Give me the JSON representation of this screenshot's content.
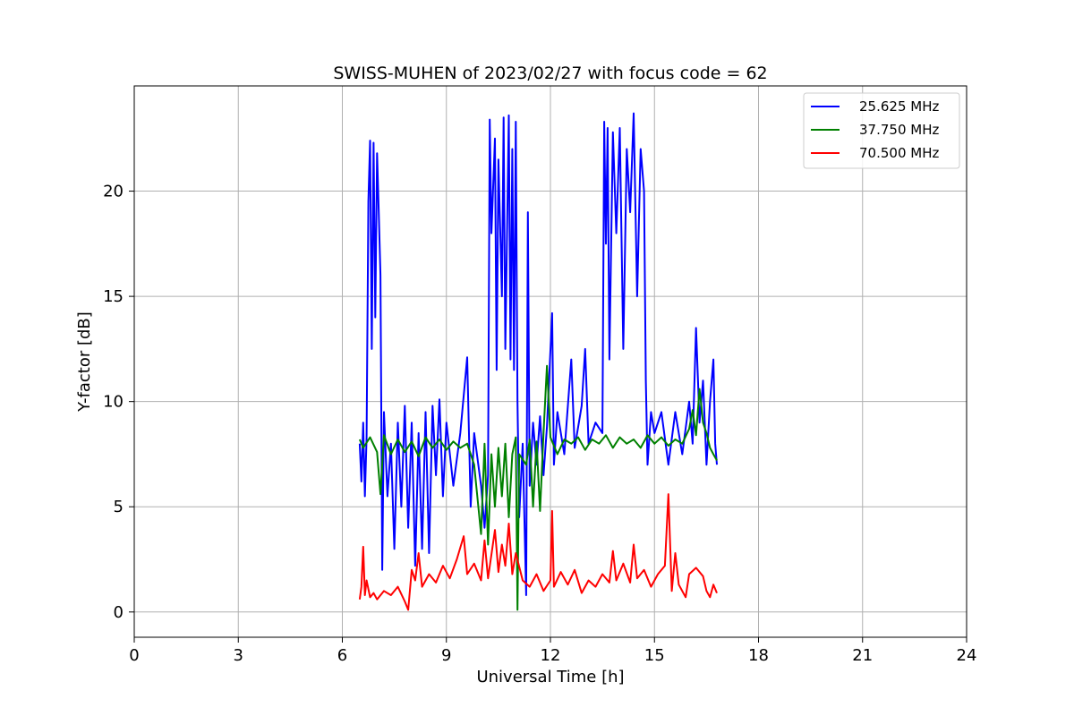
{
  "chart_data": {
    "type": "line",
    "title": "SWISS-MUHEN of 2023/02/27 with focus code = 62",
    "xlabel": "Universal Time [h]",
    "ylabel": "Y-factor [dB]",
    "xlim": [
      0,
      24
    ],
    "ylim": [
      -1.2,
      25
    ],
    "x_ticks": [
      0,
      3,
      6,
      9,
      12,
      15,
      18,
      21,
      24
    ],
    "y_ticks": [
      0,
      5,
      10,
      15,
      20
    ],
    "grid": true,
    "legend_position": "top-right",
    "series": [
      {
        "name": "25.625 MHz",
        "color": "#0000ff",
        "points": [
          [
            6.5,
            8.0
          ],
          [
            6.55,
            6.2
          ],
          [
            6.6,
            9.0
          ],
          [
            6.65,
            5.5
          ],
          [
            6.7,
            8.3
          ],
          [
            6.75,
            19.5
          ],
          [
            6.8,
            22.4
          ],
          [
            6.85,
            12.5
          ],
          [
            6.9,
            22.3
          ],
          [
            6.95,
            14.0
          ],
          [
            7.0,
            21.8
          ],
          [
            7.05,
            19.0
          ],
          [
            7.1,
            16.0
          ],
          [
            7.15,
            2.0
          ],
          [
            7.2,
            9.5
          ],
          [
            7.3,
            5.5
          ],
          [
            7.4,
            8.0
          ],
          [
            7.5,
            3.0
          ],
          [
            7.6,
            9.0
          ],
          [
            7.7,
            5.0
          ],
          [
            7.8,
            9.8
          ],
          [
            7.9,
            4.0
          ],
          [
            8.0,
            9.0
          ],
          [
            8.1,
            2.2
          ],
          [
            8.2,
            8.5
          ],
          [
            8.3,
            3.0
          ],
          [
            8.4,
            9.5
          ],
          [
            8.5,
            2.8
          ],
          [
            8.6,
            9.8
          ],
          [
            8.7,
            6.5
          ],
          [
            8.8,
            10.1
          ],
          [
            8.9,
            5.5
          ],
          [
            9.0,
            9.0
          ],
          [
            9.2,
            6.0
          ],
          [
            9.4,
            8.5
          ],
          [
            9.6,
            12.1
          ],
          [
            9.7,
            5.0
          ],
          [
            9.8,
            8.5
          ],
          [
            10.0,
            6.0
          ],
          [
            10.1,
            4.0
          ],
          [
            10.2,
            6.5
          ],
          [
            10.25,
            23.4
          ],
          [
            10.3,
            18.0
          ],
          [
            10.4,
            22.5
          ],
          [
            10.45,
            11.5
          ],
          [
            10.5,
            21.5
          ],
          [
            10.6,
            15.0
          ],
          [
            10.65,
            23.5
          ],
          [
            10.7,
            12.5
          ],
          [
            10.8,
            23.6
          ],
          [
            10.85,
            12.0
          ],
          [
            10.9,
            22.0
          ],
          [
            10.95,
            11.5
          ],
          [
            11.0,
            23.3
          ],
          [
            11.05,
            10.0
          ],
          [
            11.1,
            4.5
          ],
          [
            11.2,
            8.0
          ],
          [
            11.3,
            0.8
          ],
          [
            11.35,
            19.0
          ],
          [
            11.4,
            6.0
          ],
          [
            11.5,
            9.0
          ],
          [
            11.6,
            7.0
          ],
          [
            11.7,
            9.3
          ],
          [
            11.8,
            6.5
          ],
          [
            11.9,
            8.8
          ],
          [
            12.05,
            14.2
          ],
          [
            12.1,
            7.0
          ],
          [
            12.2,
            9.5
          ],
          [
            12.4,
            7.5
          ],
          [
            12.6,
            12.0
          ],
          [
            12.7,
            7.8
          ],
          [
            12.9,
            9.8
          ],
          [
            13.0,
            12.5
          ],
          [
            13.1,
            8.0
          ],
          [
            13.3,
            9.0
          ],
          [
            13.5,
            8.5
          ],
          [
            13.55,
            23.3
          ],
          [
            13.6,
            17.5
          ],
          [
            13.65,
            23.0
          ],
          [
            13.7,
            12.0
          ],
          [
            13.8,
            22.8
          ],
          [
            13.9,
            18.0
          ],
          [
            14.0,
            23.0
          ],
          [
            14.1,
            12.5
          ],
          [
            14.2,
            22.0
          ],
          [
            14.3,
            19.0
          ],
          [
            14.4,
            23.7
          ],
          [
            14.5,
            15.0
          ],
          [
            14.6,
            22.0
          ],
          [
            14.7,
            20.0
          ],
          [
            14.75,
            11.0
          ],
          [
            14.8,
            7.0
          ],
          [
            14.9,
            9.5
          ],
          [
            15.0,
            8.5
          ],
          [
            15.2,
            9.5
          ],
          [
            15.4,
            7.0
          ],
          [
            15.6,
            9.5
          ],
          [
            15.8,
            7.5
          ],
          [
            16.0,
            10.0
          ],
          [
            16.1,
            8.0
          ],
          [
            16.2,
            13.5
          ],
          [
            16.3,
            9.0
          ],
          [
            16.4,
            11.0
          ],
          [
            16.5,
            7.0
          ],
          [
            16.6,
            10.0
          ],
          [
            16.7,
            12.0
          ],
          [
            16.75,
            8.0
          ],
          [
            16.8,
            7.0
          ]
        ]
      },
      {
        "name": "37.750 MHz",
        "color": "#008000",
        "points": [
          [
            6.5,
            8.2
          ],
          [
            6.6,
            7.8
          ],
          [
            6.8,
            8.3
          ],
          [
            7.0,
            7.6
          ],
          [
            7.1,
            5.6
          ],
          [
            7.2,
            8.4
          ],
          [
            7.4,
            7.5
          ],
          [
            7.6,
            8.2
          ],
          [
            7.8,
            7.6
          ],
          [
            8.0,
            8.1
          ],
          [
            8.2,
            7.4
          ],
          [
            8.4,
            8.3
          ],
          [
            8.6,
            7.8
          ],
          [
            8.8,
            8.2
          ],
          [
            9.0,
            7.7
          ],
          [
            9.2,
            8.1
          ],
          [
            9.4,
            7.8
          ],
          [
            9.6,
            8.0
          ],
          [
            9.8,
            7.0
          ],
          [
            10.0,
            3.7
          ],
          [
            10.1,
            8.0
          ],
          [
            10.2,
            3.2
          ],
          [
            10.3,
            7.5
          ],
          [
            10.4,
            5.0
          ],
          [
            10.5,
            7.8
          ],
          [
            10.6,
            5.5
          ],
          [
            10.7,
            8.0
          ],
          [
            10.8,
            4.5
          ],
          [
            10.9,
            7.5
          ],
          [
            11.0,
            8.3
          ],
          [
            11.05,
            0.1
          ],
          [
            11.1,
            7.5
          ],
          [
            11.3,
            7.0
          ],
          [
            11.4,
            8.2
          ],
          [
            11.5,
            5.0
          ],
          [
            11.6,
            8.1
          ],
          [
            11.7,
            4.8
          ],
          [
            11.8,
            8.5
          ],
          [
            11.9,
            11.7
          ],
          [
            12.0,
            8.3
          ],
          [
            12.2,
            7.5
          ],
          [
            12.4,
            8.2
          ],
          [
            12.6,
            8.0
          ],
          [
            12.8,
            8.3
          ],
          [
            13.0,
            7.7
          ],
          [
            13.2,
            8.2
          ],
          [
            13.4,
            8.0
          ],
          [
            13.6,
            8.4
          ],
          [
            13.8,
            7.8
          ],
          [
            14.0,
            8.3
          ],
          [
            14.2,
            8.0
          ],
          [
            14.4,
            8.2
          ],
          [
            14.6,
            7.8
          ],
          [
            14.8,
            8.4
          ],
          [
            15.0,
            8.0
          ],
          [
            15.2,
            8.3
          ],
          [
            15.4,
            7.9
          ],
          [
            15.6,
            8.2
          ],
          [
            15.8,
            8.0
          ],
          [
            16.0,
            8.7
          ],
          [
            16.1,
            9.6
          ],
          [
            16.2,
            8.4
          ],
          [
            16.3,
            10.6
          ],
          [
            16.4,
            9.0
          ],
          [
            16.5,
            8.5
          ],
          [
            16.6,
            7.8
          ],
          [
            16.7,
            7.5
          ],
          [
            16.8,
            7.2
          ]
        ]
      },
      {
        "name": "70.500 MHz",
        "color": "#ff0000",
        "points": [
          [
            6.5,
            0.6
          ],
          [
            6.55,
            1.2
          ],
          [
            6.6,
            3.1
          ],
          [
            6.65,
            0.8
          ],
          [
            6.7,
            1.5
          ],
          [
            6.8,
            0.7
          ],
          [
            6.9,
            0.9
          ],
          [
            7.0,
            0.6
          ],
          [
            7.2,
            1.0
          ],
          [
            7.4,
            0.8
          ],
          [
            7.6,
            1.2
          ],
          [
            7.8,
            0.5
          ],
          [
            7.9,
            0.1
          ],
          [
            8.0,
            2.0
          ],
          [
            8.1,
            1.5
          ],
          [
            8.2,
            2.8
          ],
          [
            8.3,
            1.2
          ],
          [
            8.5,
            1.8
          ],
          [
            8.7,
            1.4
          ],
          [
            8.9,
            2.2
          ],
          [
            9.1,
            1.6
          ],
          [
            9.3,
            2.5
          ],
          [
            9.5,
            3.6
          ],
          [
            9.6,
            1.8
          ],
          [
            9.8,
            2.3
          ],
          [
            10.0,
            1.5
          ],
          [
            10.1,
            3.4
          ],
          [
            10.2,
            1.6
          ],
          [
            10.4,
            3.9
          ],
          [
            10.5,
            1.9
          ],
          [
            10.6,
            3.2
          ],
          [
            10.7,
            2.2
          ],
          [
            10.8,
            4.2
          ],
          [
            10.9,
            1.8
          ],
          [
            11.0,
            2.8
          ],
          [
            11.2,
            1.5
          ],
          [
            11.4,
            1.2
          ],
          [
            11.6,
            1.8
          ],
          [
            11.8,
            1.0
          ],
          [
            12.0,
            1.5
          ],
          [
            12.05,
            4.8
          ],
          [
            12.1,
            1.2
          ],
          [
            12.3,
            1.9
          ],
          [
            12.5,
            1.3
          ],
          [
            12.7,
            2.0
          ],
          [
            12.9,
            0.9
          ],
          [
            13.1,
            1.5
          ],
          [
            13.3,
            1.2
          ],
          [
            13.5,
            1.8
          ],
          [
            13.7,
            1.4
          ],
          [
            13.8,
            2.9
          ],
          [
            13.9,
            1.5
          ],
          [
            14.1,
            2.3
          ],
          [
            14.3,
            1.4
          ],
          [
            14.4,
            3.2
          ],
          [
            14.5,
            1.6
          ],
          [
            14.7,
            2.0
          ],
          [
            14.9,
            1.2
          ],
          [
            15.1,
            1.8
          ],
          [
            15.3,
            2.2
          ],
          [
            15.4,
            5.6
          ],
          [
            15.5,
            1.0
          ],
          [
            15.6,
            2.8
          ],
          [
            15.7,
            1.3
          ],
          [
            15.9,
            0.7
          ],
          [
            16.0,
            1.8
          ],
          [
            16.2,
            2.1
          ],
          [
            16.4,
            1.7
          ],
          [
            16.5,
            1.0
          ],
          [
            16.6,
            0.7
          ],
          [
            16.7,
            1.3
          ],
          [
            16.8,
            0.9
          ]
        ]
      }
    ]
  }
}
